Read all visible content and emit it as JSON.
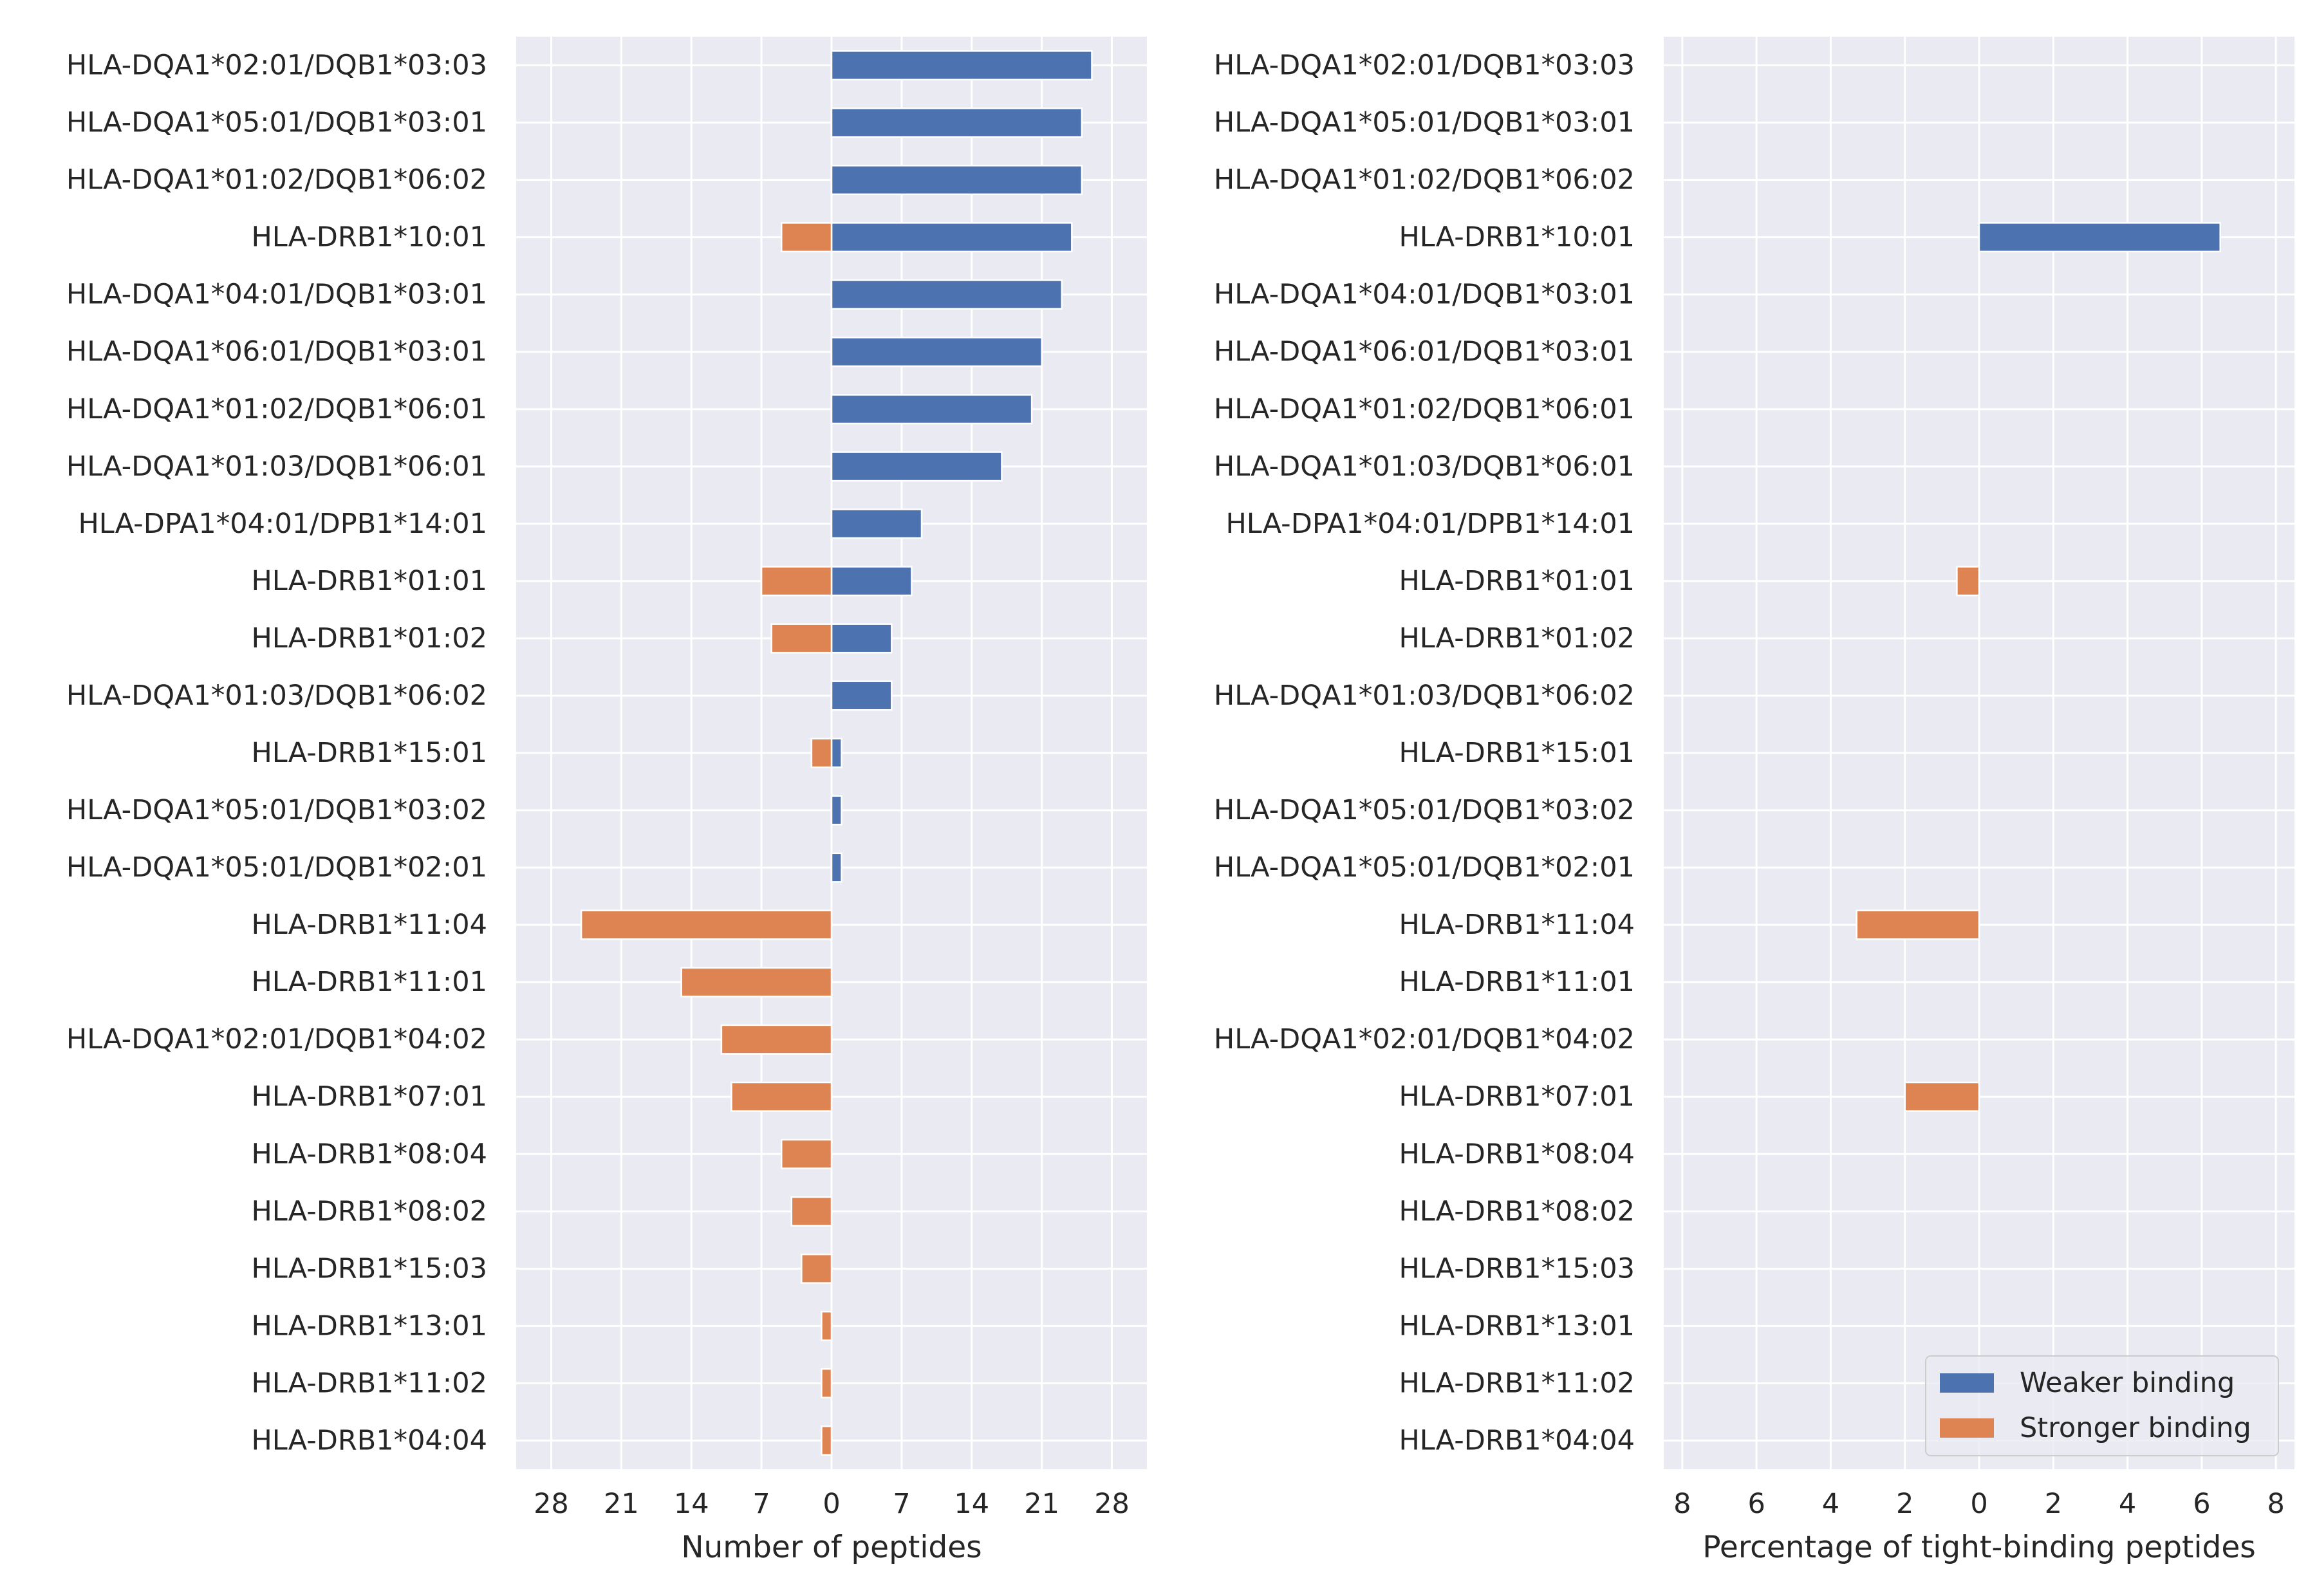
{
  "chart_data": [
    {
      "type": "bar",
      "orientation": "horizontal",
      "xlabel": "Number of peptides",
      "ylabel": "",
      "xlim": [
        -31.5,
        31.5
      ],
      "xticks": [
        {
          "value": -28,
          "label": "28"
        },
        {
          "value": -21,
          "label": "21"
        },
        {
          "value": -14,
          "label": "14"
        },
        {
          "value": -7,
          "label": "7"
        },
        {
          "value": 0,
          "label": "0"
        },
        {
          "value": 7,
          "label": "7"
        },
        {
          "value": 14,
          "label": "14"
        },
        {
          "value": 21,
          "label": "21"
        },
        {
          "value": 28,
          "label": "28"
        }
      ],
      "grid": true,
      "categories": [
        "HLA-DQA1*02:01/DQB1*03:03",
        "HLA-DQA1*05:01/DQB1*03:01",
        "HLA-DQA1*01:02/DQB1*06:02",
        "HLA-DRB1*10:01",
        "HLA-DQA1*04:01/DQB1*03:01",
        "HLA-DQA1*06:01/DQB1*03:01",
        "HLA-DQA1*01:02/DQB1*06:01",
        "HLA-DQA1*01:03/DQB1*06:01",
        "HLA-DPA1*04:01/DPB1*14:01",
        "HLA-DRB1*01:01",
        "HLA-DRB1*01:02",
        "HLA-DQA1*01:03/DQB1*06:02",
        "HLA-DRB1*15:01",
        "HLA-DQA1*05:01/DQB1*03:02",
        "HLA-DQA1*05:01/DQB1*02:01",
        "HLA-DRB1*11:04",
        "HLA-DRB1*11:01",
        "HLA-DQA1*02:01/DQB1*04:02",
        "HLA-DRB1*07:01",
        "HLA-DRB1*08:04",
        "HLA-DRB1*08:02",
        "HLA-DRB1*15:03",
        "HLA-DRB1*13:01",
        "HLA-DRB1*11:02",
        "HLA-DRB1*04:04"
      ],
      "series": [
        {
          "color": "#4c72b0",
          "values": [
            26,
            25,
            25,
            24,
            23,
            21,
            20,
            17,
            9,
            8,
            6,
            6,
            1,
            1,
            1,
            0,
            0,
            0,
            0,
            0,
            0,
            0,
            0,
            0,
            0
          ]
        },
        {
          "color": "#dd8452",
          "values": [
            0,
            0,
            0,
            5,
            0,
            0,
            0,
            0,
            0,
            7,
            6,
            0,
            2,
            0,
            0,
            25,
            15,
            11,
            10,
            5,
            4,
            3,
            1,
            1,
            1
          ]
        }
      ]
    },
    {
      "type": "bar",
      "orientation": "horizontal",
      "xlabel": "Percentage of tight-binding peptides",
      "ylabel": "",
      "xlim": [
        -8.5,
        8.5
      ],
      "xticks": [
        {
          "value": -8,
          "label": "8"
        },
        {
          "value": -6,
          "label": "6"
        },
        {
          "value": -4,
          "label": "4"
        },
        {
          "value": -2,
          "label": "2"
        },
        {
          "value": 0,
          "label": "0"
        },
        {
          "value": 2,
          "label": "2"
        },
        {
          "value": 4,
          "label": "4"
        },
        {
          "value": 6,
          "label": "6"
        },
        {
          "value": 8,
          "label": "8"
        }
      ],
      "grid": true,
      "legend": {
        "position": "lower-right",
        "entries": [
          "Weaker binding",
          "Stronger binding"
        ]
      },
      "categories": [
        "HLA-DQA1*02:01/DQB1*03:03",
        "HLA-DQA1*05:01/DQB1*03:01",
        "HLA-DQA1*01:02/DQB1*06:02",
        "HLA-DRB1*10:01",
        "HLA-DQA1*04:01/DQB1*03:01",
        "HLA-DQA1*06:01/DQB1*03:01",
        "HLA-DQA1*01:02/DQB1*06:01",
        "HLA-DQA1*01:03/DQB1*06:01",
        "HLA-DPA1*04:01/DPB1*14:01",
        "HLA-DRB1*01:01",
        "HLA-DRB1*01:02",
        "HLA-DQA1*01:03/DQB1*06:02",
        "HLA-DRB1*15:01",
        "HLA-DQA1*05:01/DQB1*03:02",
        "HLA-DQA1*05:01/DQB1*02:01",
        "HLA-DRB1*11:04",
        "HLA-DRB1*11:01",
        "HLA-DQA1*02:01/DQB1*04:02",
        "HLA-DRB1*07:01",
        "HLA-DRB1*08:04",
        "HLA-DRB1*08:02",
        "HLA-DRB1*15:03",
        "HLA-DRB1*13:01",
        "HLA-DRB1*11:02",
        "HLA-DRB1*04:04"
      ],
      "series": [
        {
          "name": "Weaker binding",
          "color": "#4c72b0",
          "values": [
            0,
            0,
            0,
            6.5,
            0,
            0,
            0,
            0,
            0,
            0,
            0,
            0,
            0,
            0,
            0,
            0,
            0,
            0,
            0,
            0,
            0,
            0,
            0,
            0,
            0
          ]
        },
        {
          "name": "Stronger binding",
          "color": "#dd8452",
          "values": [
            0,
            0,
            0,
            0,
            0,
            0,
            0,
            0,
            0,
            0.6,
            0,
            0,
            0,
            0,
            0,
            3.3,
            0,
            0,
            2.0,
            0,
            0,
            0,
            0,
            0,
            0
          ]
        }
      ]
    }
  ]
}
